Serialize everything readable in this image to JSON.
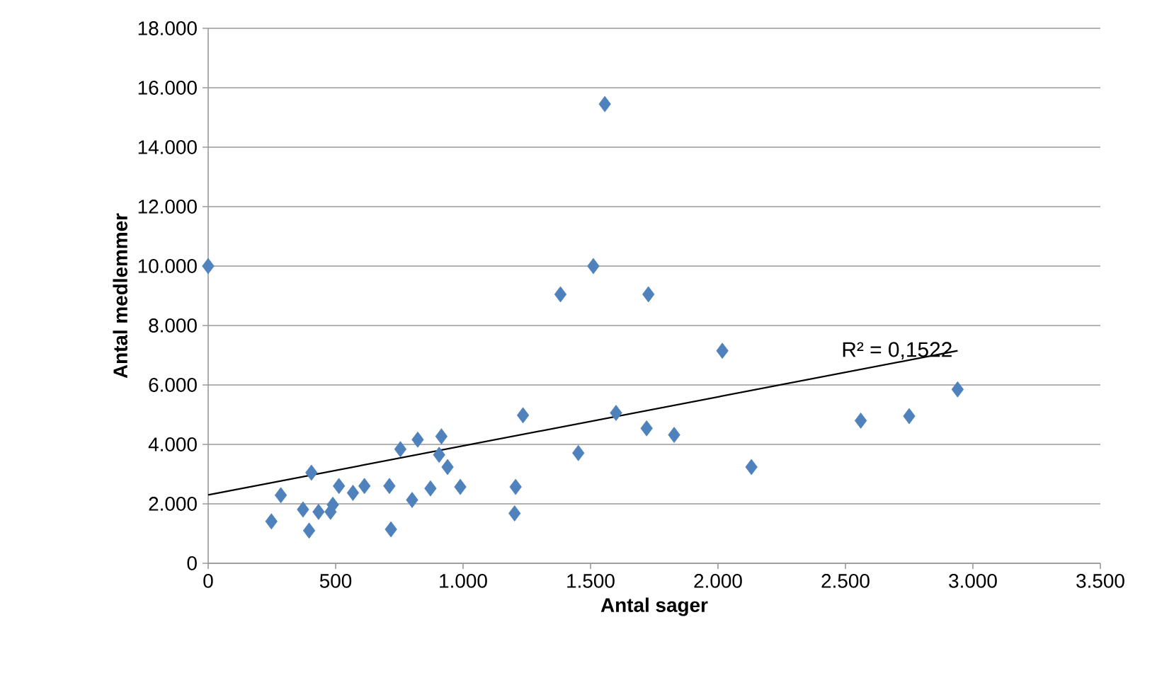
{
  "chart_data": {
    "type": "scatter",
    "xlabel": "Antal sager",
    "ylabel": "Antal medlemmer",
    "grid": "y",
    "marker": "diamond",
    "xlim": [
      0,
      3500
    ],
    "ylim": [
      0,
      18000
    ],
    "xticks": [
      0,
      500,
      {
        "value": 1000,
        "label": "1.000"
      },
      {
        "value": 1500,
        "label": "1.500"
      },
      {
        "value": 2000,
        "label": "2.000"
      },
      {
        "value": 2500,
        "label": "2.500"
      },
      {
        "value": 3000,
        "label": "3.000"
      },
      {
        "value": 3500,
        "label": "3.500"
      }
    ],
    "yticks": [
      0,
      {
        "value": 2000,
        "label": "2.000"
      },
      {
        "value": 4000,
        "label": "4.000"
      },
      {
        "value": 6000,
        "label": "6.000"
      },
      {
        "value": 8000,
        "label": "8.000"
      },
      {
        "value": 10000,
        "label": "10.000"
      },
      {
        "value": 12000,
        "label": "12.000"
      },
      {
        "value": 14000,
        "label": "14.000"
      },
      {
        "value": 16000,
        "label": "16.000"
      },
      {
        "value": 18000,
        "label": "18.000"
      }
    ],
    "series": [
      {
        "color": "#4f81bd",
        "x": [
          0,
          248,
          285,
          405,
          372,
          396,
          433,
          480,
          489,
          513,
          568,
          613,
          711,
          717,
          754,
          800,
          822,
          872,
          915,
          906,
          939,
          989,
          1206,
          1202,
          1235,
          1452,
          1600,
          1720,
          1828,
          2131,
          1556,
          1511,
          1382,
          1727,
          2017,
          2560,
          2750,
          2940
        ],
        "values": [
          10000,
          1410,
          2290,
          3050,
          1810,
          1100,
          1730,
          1730,
          1970,
          2600,
          2370,
          2600,
          2600,
          1140,
          3840,
          2130,
          4160,
          2520,
          4270,
          3650,
          3240,
          2570,
          2570,
          1680,
          4980,
          3710,
          5060,
          4540,
          4320,
          3240,
          15450,
          10000,
          9050,
          9050,
          7150,
          4800,
          4950,
          5850
        ]
      },
      {
        "type": "line",
        "color": "#000000",
        "marker": "none",
        "x": [
          0,
          2940
        ],
        "values": [
          2300,
          7150
        ]
      }
    ],
    "annotations": [
      "R² = 0,1522"
    ]
  }
}
